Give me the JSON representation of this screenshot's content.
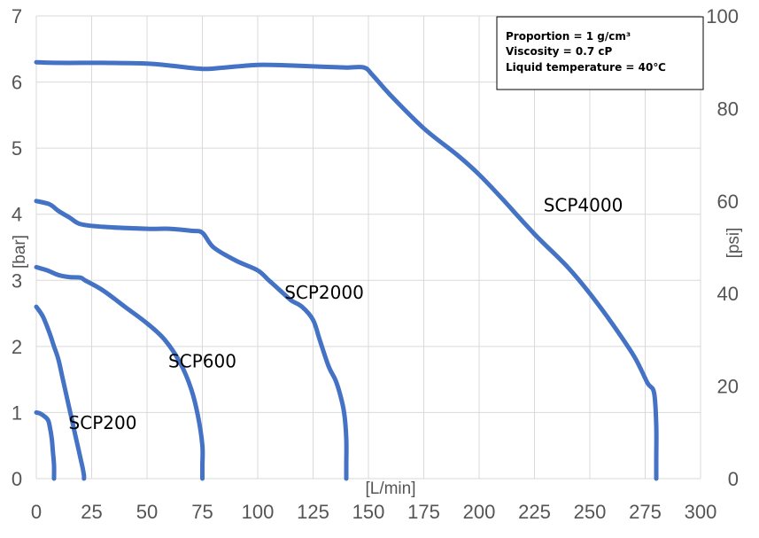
{
  "chart_data": {
    "type": "line",
    "title": "",
    "xlabel": "[L/min]",
    "ylabel": "[bar]",
    "y2label": "[psi]",
    "xlim": [
      0,
      300
    ],
    "ylim": [
      0,
      7
    ],
    "y2lim": [
      0,
      100
    ],
    "x_ticks": [
      0,
      25,
      50,
      75,
      100,
      125,
      150,
      175,
      200,
      225,
      250,
      275,
      300
    ],
    "y_ticks": [
      0,
      1,
      2,
      3,
      4,
      5,
      6,
      7
    ],
    "y2_ticks": [
      0,
      20,
      40,
      60,
      80,
      100
    ],
    "grid": true,
    "legend": "none",
    "line_color": "#4472c4",
    "annotation": {
      "lines": [
        "Proportion = 1 g/cm³",
        "Viscosity = 0.7 cP",
        "Liquid temperature = 40℃"
      ],
      "placement": "top-right"
    },
    "series": [
      {
        "name": "SCP200",
        "x": [
          0,
          2,
          5,
          6,
          7,
          7.5,
          8,
          8
        ],
        "y": [
          1.0,
          0.98,
          0.9,
          0.8,
          0.6,
          0.4,
          0.2,
          0
        ]
      },
      {
        "name": "SCP600",
        "x": [
          0,
          3,
          6,
          8,
          10,
          12,
          14,
          16,
          18,
          20,
          21,
          21.5,
          21.5
        ],
        "y": [
          2.6,
          2.45,
          2.2,
          2.0,
          1.8,
          1.5,
          1.2,
          0.9,
          0.6,
          0.3,
          0.15,
          0.05,
          0
        ]
      },
      {
        "name": "SCP600",
        "x": [
          0,
          5,
          10,
          15,
          20,
          22,
          30,
          40,
          50,
          58,
          65,
          70,
          73,
          75,
          75,
          75
        ],
        "y": [
          3.2,
          3.15,
          3.08,
          3.05,
          3.04,
          3.0,
          2.85,
          2.6,
          2.35,
          2.1,
          1.75,
          1.35,
          0.95,
          0.5,
          0.2,
          0
        ]
      },
      {
        "name": "SCP2000",
        "x": [
          0,
          6,
          10,
          15,
          20,
          30,
          50,
          60,
          70,
          75,
          80,
          90,
          100,
          105,
          110,
          115,
          120,
          125,
          128,
          132,
          135,
          137,
          139,
          140,
          140,
          140
        ],
        "y": [
          4.2,
          4.15,
          4.05,
          3.95,
          3.85,
          3.81,
          3.78,
          3.78,
          3.75,
          3.72,
          3.5,
          3.3,
          3.15,
          3.0,
          2.85,
          2.7,
          2.6,
          2.4,
          2.1,
          1.7,
          1.5,
          1.3,
          1.0,
          0.6,
          0.2,
          0
        ]
      },
      {
        "name": "SCP4000",
        "x": [
          0,
          10,
          30,
          50,
          60,
          75,
          85,
          100,
          115,
          130,
          140,
          148,
          152,
          160,
          175,
          190,
          200,
          210,
          225,
          240,
          250,
          260,
          270,
          276,
          279,
          280,
          280,
          280
        ],
        "y": [
          6.3,
          6.29,
          6.29,
          6.28,
          6.25,
          6.2,
          6.22,
          6.26,
          6.25,
          6.23,
          6.22,
          6.22,
          6.1,
          5.8,
          5.3,
          4.9,
          4.6,
          4.25,
          3.7,
          3.2,
          2.8,
          2.35,
          1.85,
          1.45,
          1.3,
          0.8,
          0.3,
          0
        ]
      }
    ],
    "series_labels": [
      {
        "text": "SCP200",
        "x": 30,
        "y": 0.75
      },
      {
        "text": "SCP600",
        "x": 75,
        "y": 1.68
      },
      {
        "text": "SCP2000",
        "x": 130,
        "y": 2.72
      },
      {
        "text": "SCP4000",
        "x": 247,
        "y": 4.04
      }
    ]
  }
}
